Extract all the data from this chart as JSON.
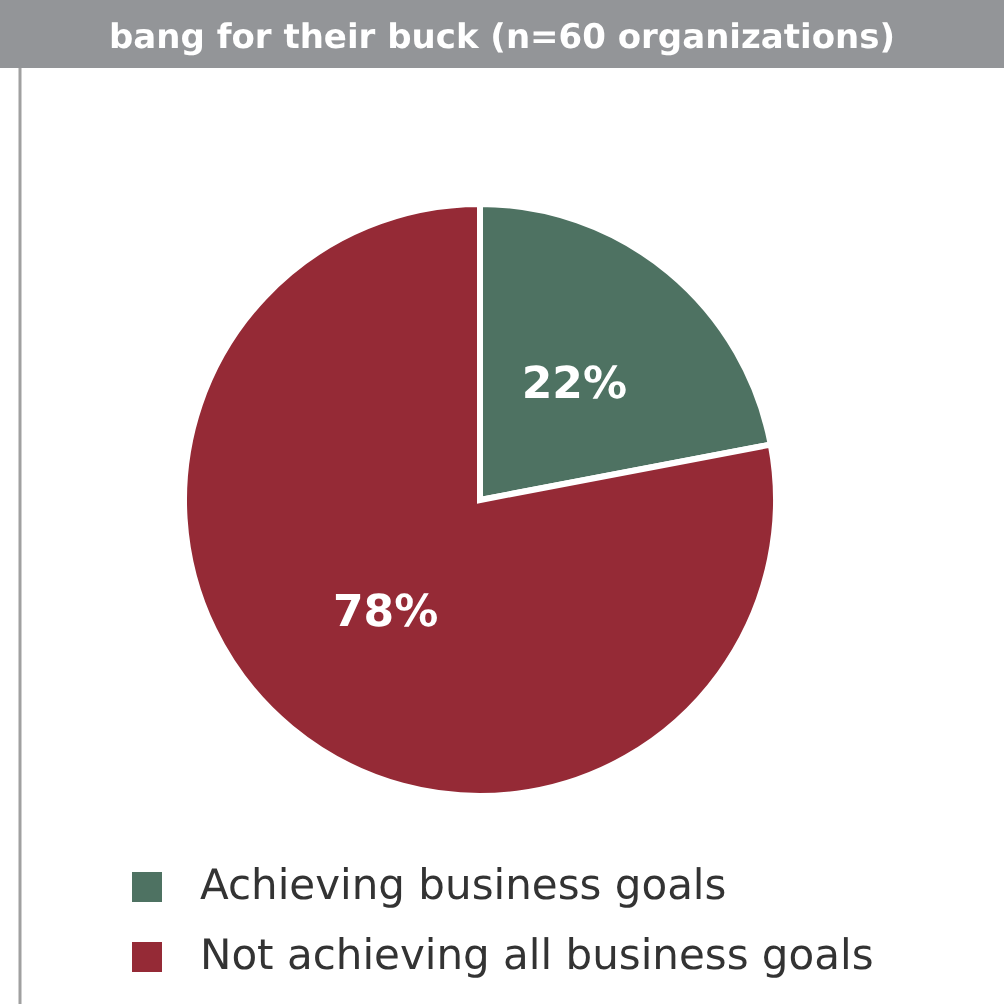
{
  "chart_data": {
    "type": "pie",
    "title": "bang for their buck (n=60 organizations)",
    "categories": [
      "Achieving business goals",
      "Not achieving all business goals"
    ],
    "values": [
      22,
      78
    ],
    "colors": [
      "#4e7262",
      "#952a36"
    ],
    "value_labels": [
      "22%",
      "78%"
    ],
    "legend": "bottom"
  }
}
